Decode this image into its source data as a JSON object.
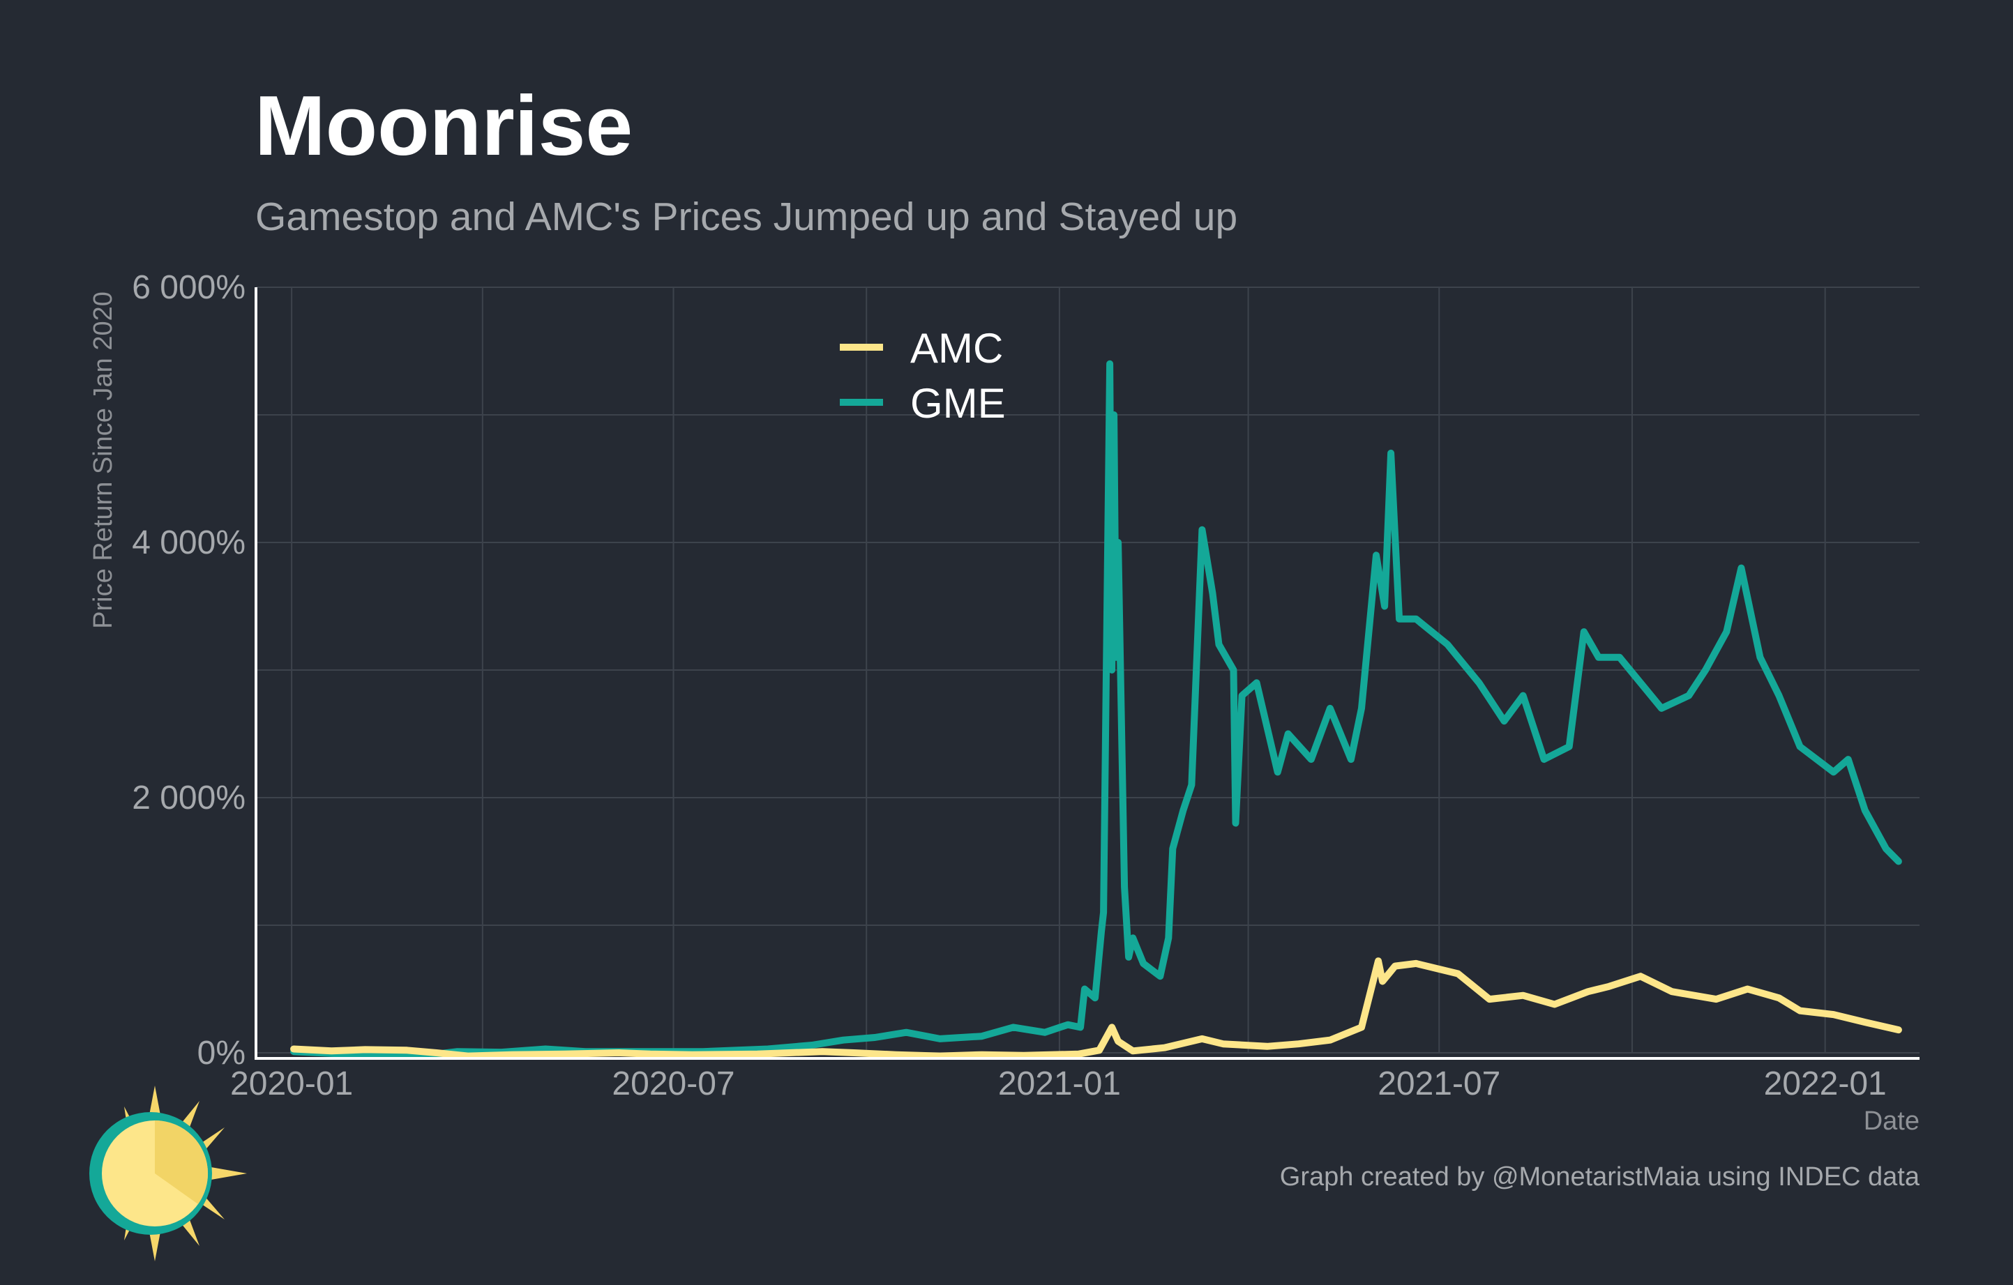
{
  "header": {
    "title": "Moonrise",
    "subtitle": "Gamestop and AMC's Prices Jumped up and Stayed up"
  },
  "footer": {
    "caption": "Graph created by @MonetaristMaia using INDEC data"
  },
  "colors": {
    "background": "#252a33",
    "amc": "#fde68a",
    "gme": "#14a898",
    "axis": "#ffffff",
    "grid": "#3d434c"
  },
  "logo": {
    "icon": "sun-logo-icon"
  },
  "chart_data": {
    "type": "line",
    "title": "Moonrise",
    "subtitle": "Gamestop and AMC's Prices Jumped up and Stayed up",
    "xlabel": "Date",
    "ylabel": "Price Return Since Jan 2020",
    "x_ticks": [
      "2020-01",
      "2020-07",
      "2021-01",
      "2021-07",
      "2022-01"
    ],
    "y_ticks": [
      "0%",
      "2 000%",
      "4 000%",
      "6 000%"
    ],
    "y_tick_values": [
      0,
      2000,
      4000,
      6000
    ],
    "ylim": [
      0,
      6000
    ],
    "xlim": [
      "2019-12-15",
      "2022-02-15"
    ],
    "grid": true,
    "legend_position": "top-center",
    "series": [
      {
        "name": "AMC",
        "color": "#fde68a",
        "points": [
          [
            "2020-01-02",
            30
          ],
          [
            "2020-01-20",
            15
          ],
          [
            "2020-02-05",
            25
          ],
          [
            "2020-02-25",
            20
          ],
          [
            "2020-03-10",
            0
          ],
          [
            "2020-03-25",
            -25
          ],
          [
            "2020-04-15",
            -15
          ],
          [
            "2020-05-10",
            -10
          ],
          [
            "2020-06-05",
            0
          ],
          [
            "2020-06-20",
            -10
          ],
          [
            "2020-07-10",
            -15
          ],
          [
            "2020-08-10",
            -10
          ],
          [
            "2020-09-10",
            10
          ],
          [
            "2020-09-25",
            0
          ],
          [
            "2020-10-15",
            -15
          ],
          [
            "2020-11-05",
            -25
          ],
          [
            "2020-11-25",
            -15
          ],
          [
            "2020-12-15",
            -20
          ],
          [
            "2021-01-10",
            -10
          ],
          [
            "2021-01-20",
            20
          ],
          [
            "2021-01-26",
            200
          ],
          [
            "2021-01-29",
            90
          ],
          [
            "2021-02-05",
            15
          ],
          [
            "2021-02-20",
            40
          ],
          [
            "2021-03-10",
            110
          ],
          [
            "2021-03-20",
            70
          ],
          [
            "2021-04-10",
            50
          ],
          [
            "2021-04-25",
            70
          ],
          [
            "2021-05-10",
            100
          ],
          [
            "2021-05-25",
            200
          ],
          [
            "2021-06-02",
            720
          ],
          [
            "2021-06-04",
            560
          ],
          [
            "2021-06-10",
            680
          ],
          [
            "2021-06-20",
            700
          ],
          [
            "2021-07-10",
            620
          ],
          [
            "2021-07-25",
            420
          ],
          [
            "2021-08-10",
            450
          ],
          [
            "2021-08-25",
            380
          ],
          [
            "2021-09-10",
            480
          ],
          [
            "2021-09-20",
            520
          ],
          [
            "2021-10-05",
            600
          ],
          [
            "2021-10-20",
            480
          ],
          [
            "2021-11-10",
            420
          ],
          [
            "2021-11-25",
            500
          ],
          [
            "2021-12-10",
            430
          ],
          [
            "2021-12-20",
            330
          ],
          [
            "2022-01-05",
            300
          ],
          [
            "2022-01-20",
            240
          ],
          [
            "2022-02-05",
            180
          ]
        ]
      },
      {
        "name": "GME",
        "color": "#14a898",
        "points": [
          [
            "2020-01-02",
            10
          ],
          [
            "2020-01-20",
            -5
          ],
          [
            "2020-02-10",
            -15
          ],
          [
            "2020-03-05",
            -20
          ],
          [
            "2020-03-20",
            10
          ],
          [
            "2020-04-10",
            5
          ],
          [
            "2020-05-01",
            30
          ],
          [
            "2020-05-20",
            10
          ],
          [
            "2020-06-15",
            10
          ],
          [
            "2020-07-15",
            10
          ],
          [
            "2020-08-15",
            30
          ],
          [
            "2020-09-05",
            60
          ],
          [
            "2020-09-20",
            100
          ],
          [
            "2020-10-05",
            120
          ],
          [
            "2020-10-20",
            160
          ],
          [
            "2020-11-05",
            110
          ],
          [
            "2020-11-25",
            130
          ],
          [
            "2020-12-10",
            200
          ],
          [
            "2020-12-25",
            160
          ],
          [
            "2021-01-05",
            220
          ],
          [
            "2021-01-11",
            200
          ],
          [
            "2021-01-13",
            500
          ],
          [
            "2021-01-18",
            430
          ],
          [
            "2021-01-21",
            950
          ],
          [
            "2021-01-22",
            1100
          ],
          [
            "2021-01-25",
            5400
          ],
          [
            "2021-01-26",
            3000
          ],
          [
            "2021-01-27",
            5000
          ],
          [
            "2021-01-28",
            3100
          ],
          [
            "2021-01-29",
            4000
          ],
          [
            "2021-02-01",
            1300
          ],
          [
            "2021-02-03",
            750
          ],
          [
            "2021-02-05",
            900
          ],
          [
            "2021-02-10",
            700
          ],
          [
            "2021-02-18",
            600
          ],
          [
            "2021-02-22",
            900
          ],
          [
            "2021-02-24",
            1600
          ],
          [
            "2021-03-01",
            1900
          ],
          [
            "2021-03-05",
            2100
          ],
          [
            "2021-03-10",
            4100
          ],
          [
            "2021-03-15",
            3600
          ],
          [
            "2021-03-18",
            3200
          ],
          [
            "2021-03-25",
            3000
          ],
          [
            "2021-03-26",
            1800
          ],
          [
            "2021-03-29",
            2800
          ],
          [
            "2021-04-05",
            2900
          ],
          [
            "2021-04-15",
            2200
          ],
          [
            "2021-04-20",
            2500
          ],
          [
            "2021-05-01",
            2300
          ],
          [
            "2021-05-10",
            2700
          ],
          [
            "2021-05-20",
            2300
          ],
          [
            "2021-05-25",
            2700
          ],
          [
            "2021-06-01",
            3900
          ],
          [
            "2021-06-05",
            3500
          ],
          [
            "2021-06-08",
            4700
          ],
          [
            "2021-06-12",
            3400
          ],
          [
            "2021-06-20",
            3400
          ],
          [
            "2021-07-05",
            3200
          ],
          [
            "2021-07-20",
            2900
          ],
          [
            "2021-08-01",
            2600
          ],
          [
            "2021-08-10",
            2800
          ],
          [
            "2021-08-20",
            2300
          ],
          [
            "2021-09-01",
            2400
          ],
          [
            "2021-09-08",
            3300
          ],
          [
            "2021-09-15",
            3100
          ],
          [
            "2021-09-25",
            3100
          ],
          [
            "2021-10-05",
            2900
          ],
          [
            "2021-10-15",
            2700
          ],
          [
            "2021-10-28",
            2800
          ],
          [
            "2021-11-05",
            3000
          ],
          [
            "2021-11-15",
            3300
          ],
          [
            "2021-11-22",
            3800
          ],
          [
            "2021-12-01",
            3100
          ],
          [
            "2021-12-10",
            2800
          ],
          [
            "2021-12-20",
            2400
          ],
          [
            "2022-01-05",
            2200
          ],
          [
            "2022-01-12",
            2300
          ],
          [
            "2022-01-20",
            1900
          ],
          [
            "2022-01-30",
            1600
          ],
          [
            "2022-02-05",
            1500
          ]
        ]
      }
    ]
  }
}
